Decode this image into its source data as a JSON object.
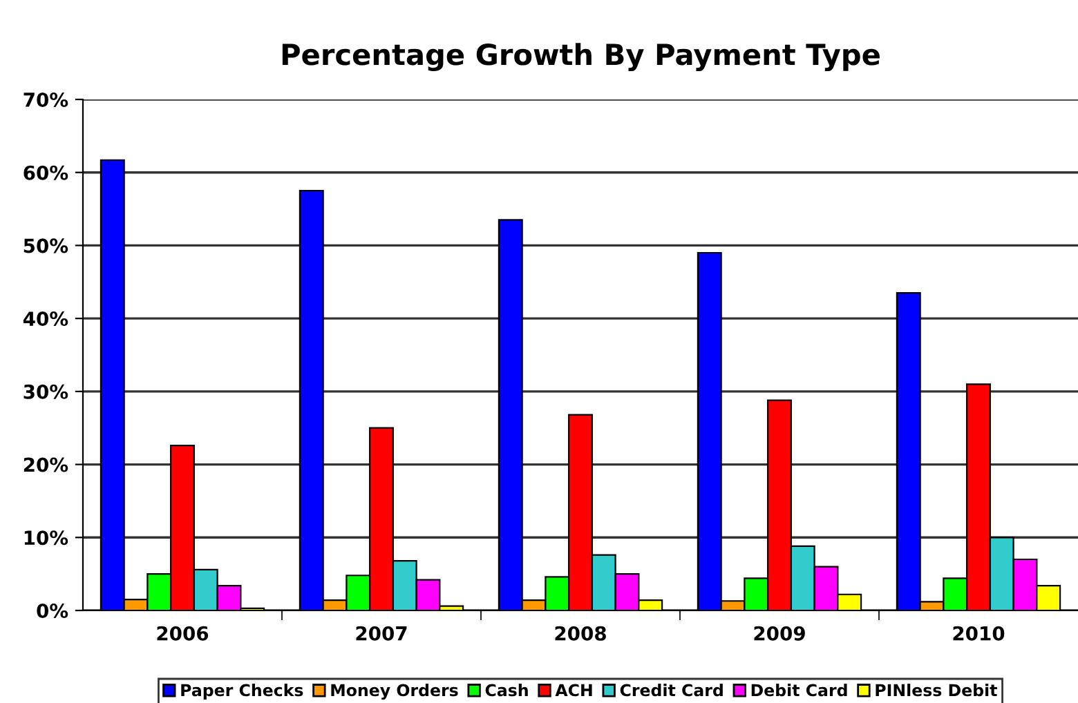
{
  "chart_data": {
    "type": "bar",
    "title": "Percentage Growth By Payment Type",
    "categories": [
      "2006",
      "2007",
      "2008",
      "2009",
      "2010"
    ],
    "series": [
      {
        "name": "Paper Checks",
        "color": "#0000ff",
        "values": [
          61.7,
          57.5,
          53.5,
          49.0,
          43.5
        ]
      },
      {
        "name": "Money Orders",
        "color": "#ff9900",
        "values": [
          1.5,
          1.4,
          1.4,
          1.3,
          1.2
        ]
      },
      {
        "name": "Cash",
        "color": "#00ff00",
        "values": [
          5.0,
          4.8,
          4.6,
          4.4,
          4.4
        ]
      },
      {
        "name": "ACH",
        "color": "#ff0000",
        "values": [
          22.6,
          25.0,
          26.8,
          28.8,
          31.0
        ]
      },
      {
        "name": "Credit Card",
        "color": "#33cccc",
        "values": [
          5.6,
          6.8,
          7.6,
          8.8,
          10.0
        ]
      },
      {
        "name": "Debit Card",
        "color": "#ff00ff",
        "values": [
          3.4,
          4.2,
          5.0,
          6.0,
          7.0
        ]
      },
      {
        "name": "PINless Debit",
        "color": "#ffff00",
        "values": [
          0.3,
          0.6,
          1.4,
          2.2,
          3.4
        ]
      }
    ],
    "ylim": [
      0,
      70
    ],
    "yticks": [
      {
        "value": 0,
        "label": "0%"
      },
      {
        "value": 10,
        "label": "10%"
      },
      {
        "value": 20,
        "label": "20%"
      },
      {
        "value": 30,
        "label": "30%"
      },
      {
        "value": 40,
        "label": "40%"
      },
      {
        "value": 50,
        "label": "50%"
      },
      {
        "value": 60,
        "label": "60%"
      },
      {
        "value": 70,
        "label": "70%"
      }
    ],
    "grid": "y",
    "legend": "bottom"
  }
}
